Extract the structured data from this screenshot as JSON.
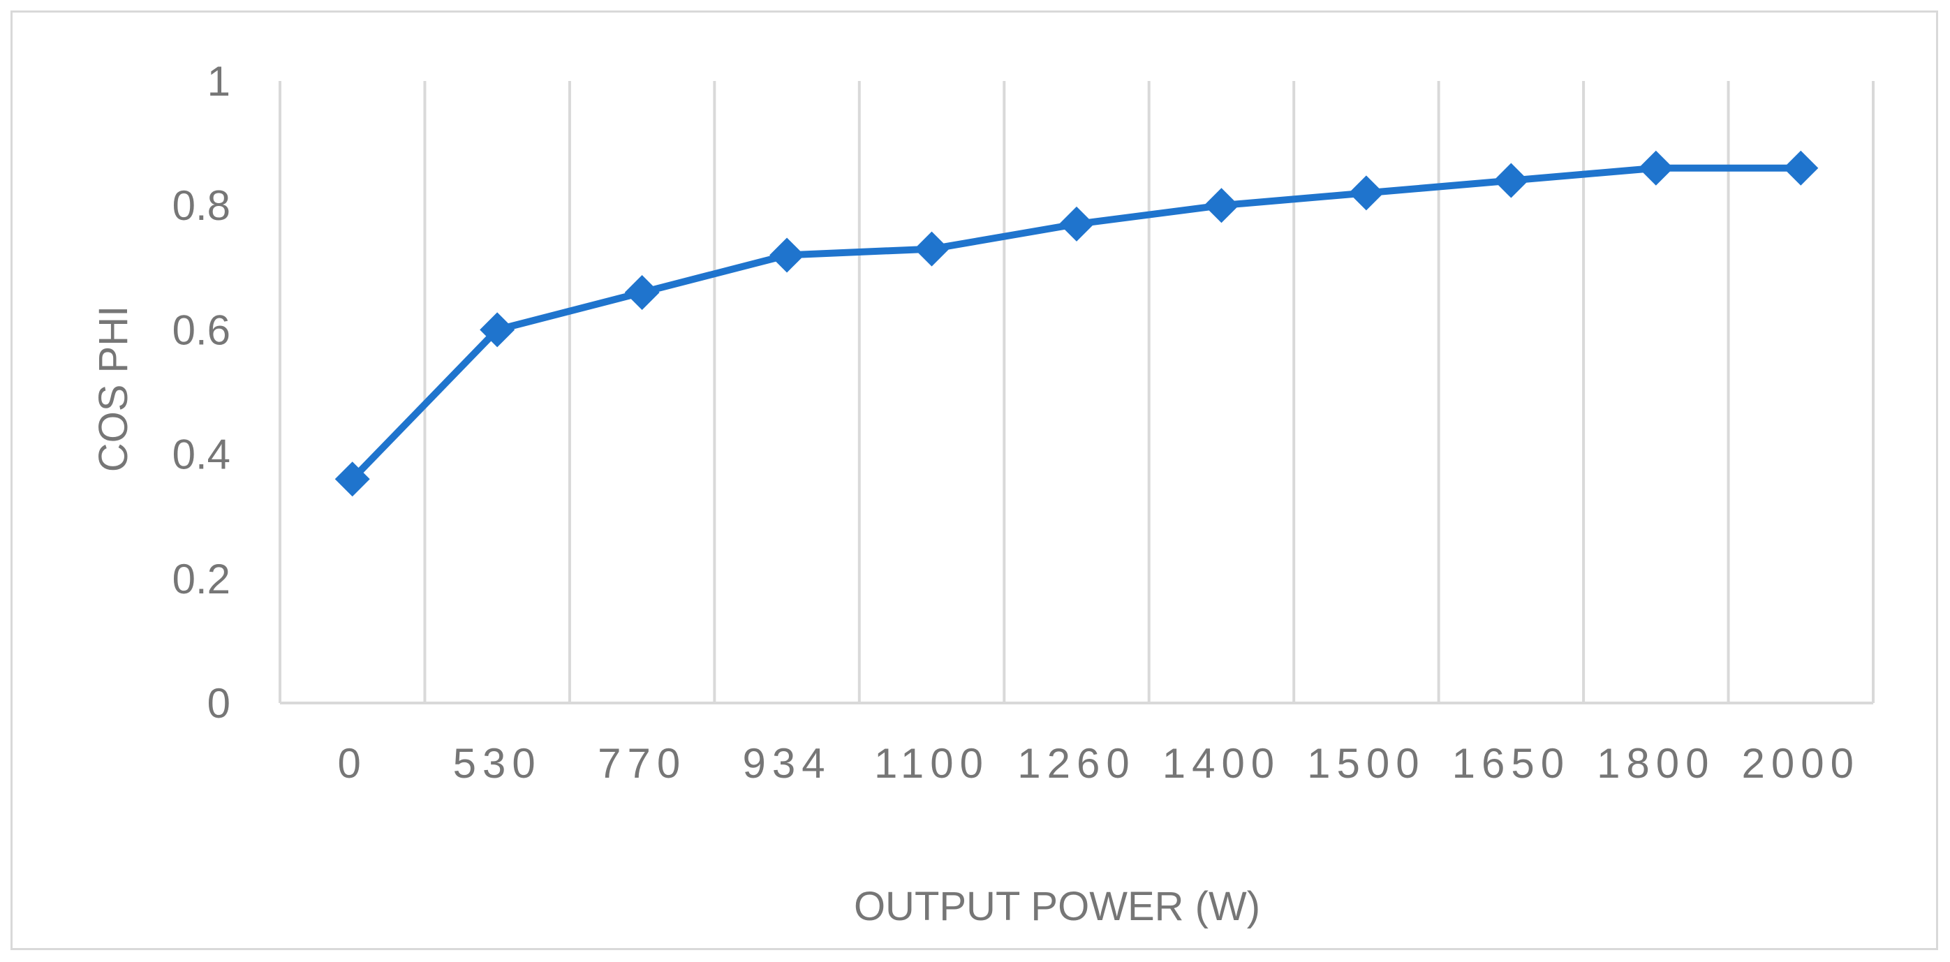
{
  "chart_data": {
    "type": "line",
    "title": "",
    "xlabel": "OUTPUT POWER (W)",
    "ylabel": "COS PHI",
    "categories": [
      "0",
      "530",
      "770",
      "934",
      "1100",
      "1260",
      "1400",
      "1500",
      "1650",
      "1800",
      "2000"
    ],
    "series": [
      {
        "values": [
          0.36,
          0.6,
          0.66,
          0.72,
          0.73,
          0.77,
          0.8,
          0.82,
          0.84,
          0.86,
          0.86
        ],
        "color": "#1f74cd",
        "marker": "diamond"
      }
    ],
    "yticks": [
      "0",
      "0.2",
      "0.4",
      "0.6",
      "0.8",
      "1"
    ],
    "ylim": [
      0,
      1
    ],
    "grid": "vertical",
    "legend": "none",
    "colors": {
      "series": "#1f74cd",
      "grid": "#d9d9d9",
      "text": "#767676",
      "border": "#d9d9d9"
    }
  }
}
